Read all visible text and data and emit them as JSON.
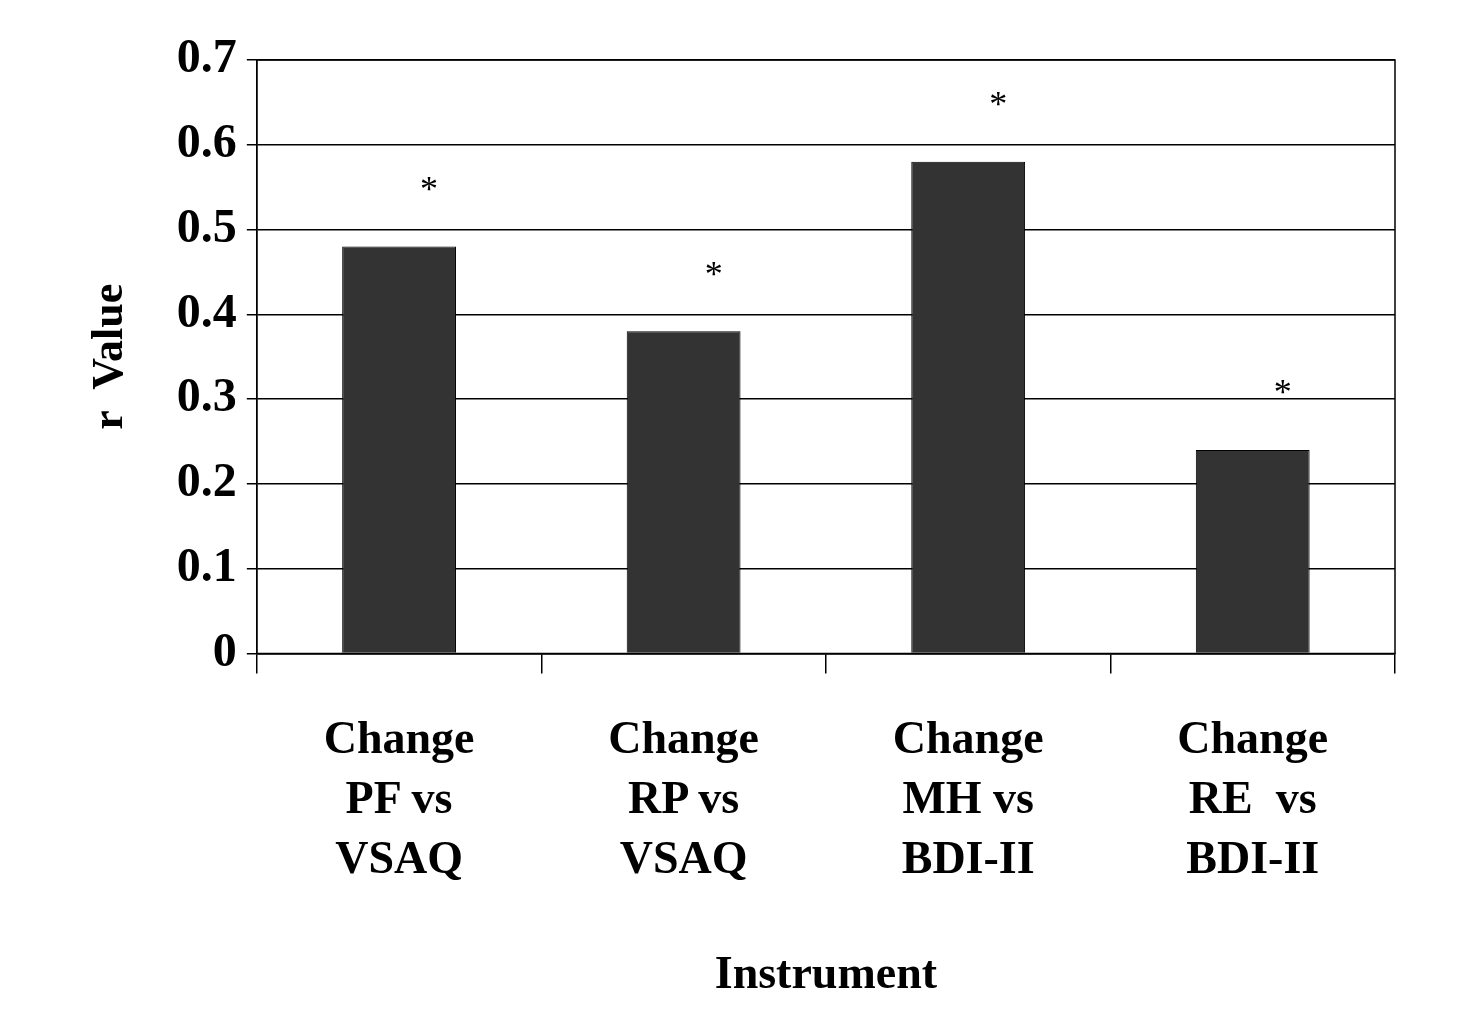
{
  "chart_data": {
    "type": "bar",
    "xlabel": "Instrument",
    "ylabel": "r  Value",
    "categories": [
      "Change\nPF vs\nVSAQ",
      "Change\nRP vs\nVSAQ",
      "Change\nMH vs\nBDI-II",
      "Change\nRE  vs\nBDI-II"
    ],
    "values": [
      0.48,
      0.38,
      0.58,
      0.24
    ],
    "color": "#333333",
    "ylim": [
      0,
      0.7
    ],
    "yticks": [
      0,
      0.1,
      0.2,
      0.3,
      0.4,
      0.5,
      0.6,
      0.7
    ],
    "grid": "y",
    "legend": false,
    "annotations": [
      "*",
      "*",
      "*",
      "*"
    ]
  }
}
